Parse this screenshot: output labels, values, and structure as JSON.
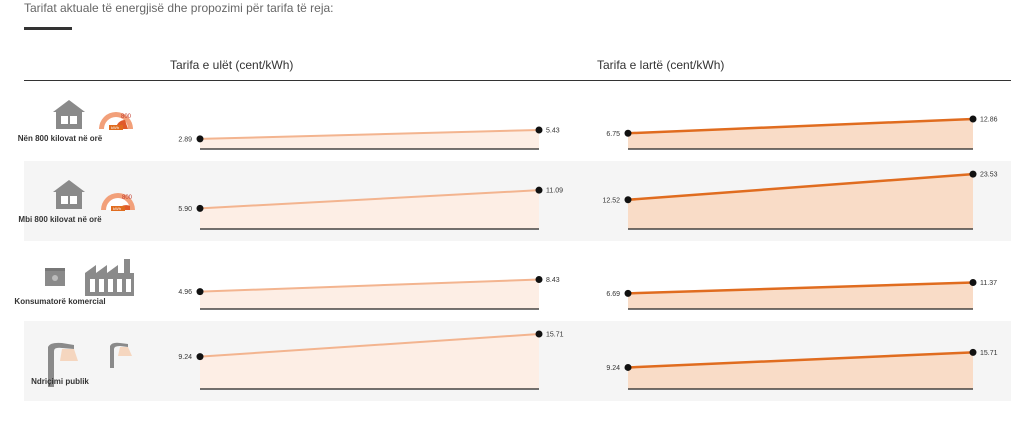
{
  "subtitle": "Tarifat aktuale të energjisë dhe propozimi për tarifa të reja:",
  "headers": {
    "low": "Tarifa e ulët (cent/kWh)",
    "high": "Tarifa e lartë (cent/kWh)"
  },
  "rows": [
    {
      "label": "Nën 800 kilovat në orë",
      "gauge": "800"
    },
    {
      "label": "Mbi 800 kilovat në orë",
      "gauge": "800"
    },
    {
      "label": "Konsumatorë komercial"
    },
    {
      "label": "Ndriçimi publik"
    }
  ],
  "colors": {
    "low_line": "#f3b48f",
    "low_fill": "#fdeee5",
    "high_line": "#e06c1f",
    "high_fill": "#f9dcc7",
    "dot": "#111111"
  },
  "chart_data": {
    "type": "line",
    "categories": [
      "Nën 800 kilovat në orë",
      "Mbi 800 kilovat në orë",
      "Konsumatorë komercial",
      "Ndriçimi publik"
    ],
    "series": [
      {
        "name": "Tarifa e ulët (cent/kWh)",
        "start": [
          "2.89",
          "5.90",
          "4.96",
          "9.24"
        ],
        "end": [
          "5.43",
          "11.09",
          "8.43",
          "15.71"
        ]
      },
      {
        "name": "Tarifa e lartë (cent/kWh)",
        "start": [
          "6.75",
          "12.52",
          "6.69",
          "9.24"
        ],
        "end": [
          "12.86",
          "23.53",
          "11.37",
          "15.71"
        ]
      }
    ]
  }
}
